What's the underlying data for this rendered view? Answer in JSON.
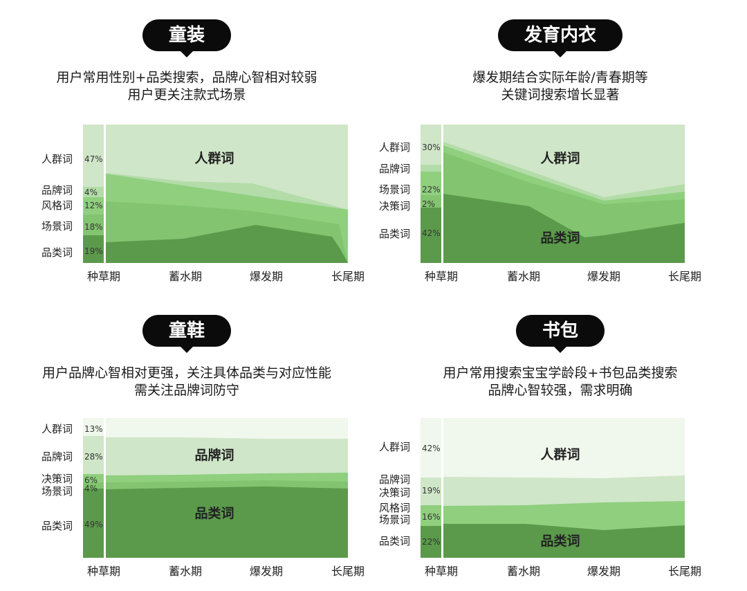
{
  "panels": [
    {
      "title": "童装",
      "desc": [
        "用户常用性别+品类搜索，品牌心智相对较弱",
        "用户更关注款式场景"
      ],
      "chart_data": {
        "type": "area",
        "categories": [
          "种草期",
          "蓄水期",
          "爆发期",
          "长尾期"
        ],
        "legend": [
          {
            "label": "人群词",
            "pct": "47%"
          },
          {
            "label": "品牌词",
            "pct": "4%"
          },
          {
            "label": "风格词",
            "pct": "12%"
          },
          {
            "label": "场景词",
            "pct": "18%"
          },
          {
            "label": "品类词",
            "pct": "19%"
          }
        ],
        "annotations": [
          {
            "text": "人群词"
          }
        ]
      }
    },
    {
      "title": "发育内衣",
      "desc": [
        "爆发期结合实际年龄/青春期等",
        "关键词搜索增长显著"
      ],
      "chart_data": {
        "type": "area",
        "categories": [
          "种草期",
          "蓄水期",
          "爆发期",
          "长尾期"
        ],
        "legend": [
          {
            "label": "人群词",
            "pct": "30%"
          },
          {
            "label": "品牌词",
            "pct": ""
          },
          {
            "label": "场景词",
            "pct": "22%"
          },
          {
            "label": "决策词",
            "pct": "2%"
          },
          {
            "label": "品类词",
            "pct": "42%"
          }
        ],
        "annotations": [
          {
            "text": "人群词"
          },
          {
            "text": "品类词"
          }
        ]
      }
    },
    {
      "title": "童鞋",
      "desc": [
        "用户品牌心智相对更强，关注具体品类与对应性能",
        "需关注品牌词防守"
      ],
      "chart_data": {
        "type": "area",
        "categories": [
          "种草期",
          "蓄水期",
          "爆发期",
          "长尾期"
        ],
        "legend": [
          {
            "label": "人群词",
            "pct": "13%"
          },
          {
            "label": "品牌词",
            "pct": "28%"
          },
          {
            "label": "决策词",
            "pct": "6%"
          },
          {
            "label": "场景词",
            "pct": "4%"
          },
          {
            "label": "品类词",
            "pct": "49%"
          }
        ],
        "annotations": [
          {
            "text": "品牌词"
          },
          {
            "text": "品类词"
          }
        ]
      }
    },
    {
      "title": "书包",
      "desc": [
        "用户常用搜索宝宝学龄段+书包品类搜索",
        "品牌心智较强，需求明确"
      ],
      "chart_data": {
        "type": "area",
        "categories": [
          "种草期",
          "蓄水期",
          "爆发期",
          "长尾期"
        ],
        "legend": [
          {
            "label": "人群词",
            "pct": "42%"
          },
          {
            "label": "品牌词",
            "pct": ""
          },
          {
            "label": "决策词",
            "pct": "19%"
          },
          {
            "label": "风格词",
            "pct": ""
          },
          {
            "label": "场景词",
            "pct": "16%"
          },
          {
            "label": "品类词",
            "pct": "22%"
          }
        ],
        "annotations": [
          {
            "text": "人群词"
          },
          {
            "text": "品类词"
          }
        ]
      }
    }
  ],
  "colors": {
    "plot_bg": "#f0f7ec",
    "light": "#cfe6c8",
    "lightmid": "#b3dca9",
    "mid": "#8fcf7e",
    "midalt": "#82c46f",
    "dark": "#5b9a4b"
  }
}
